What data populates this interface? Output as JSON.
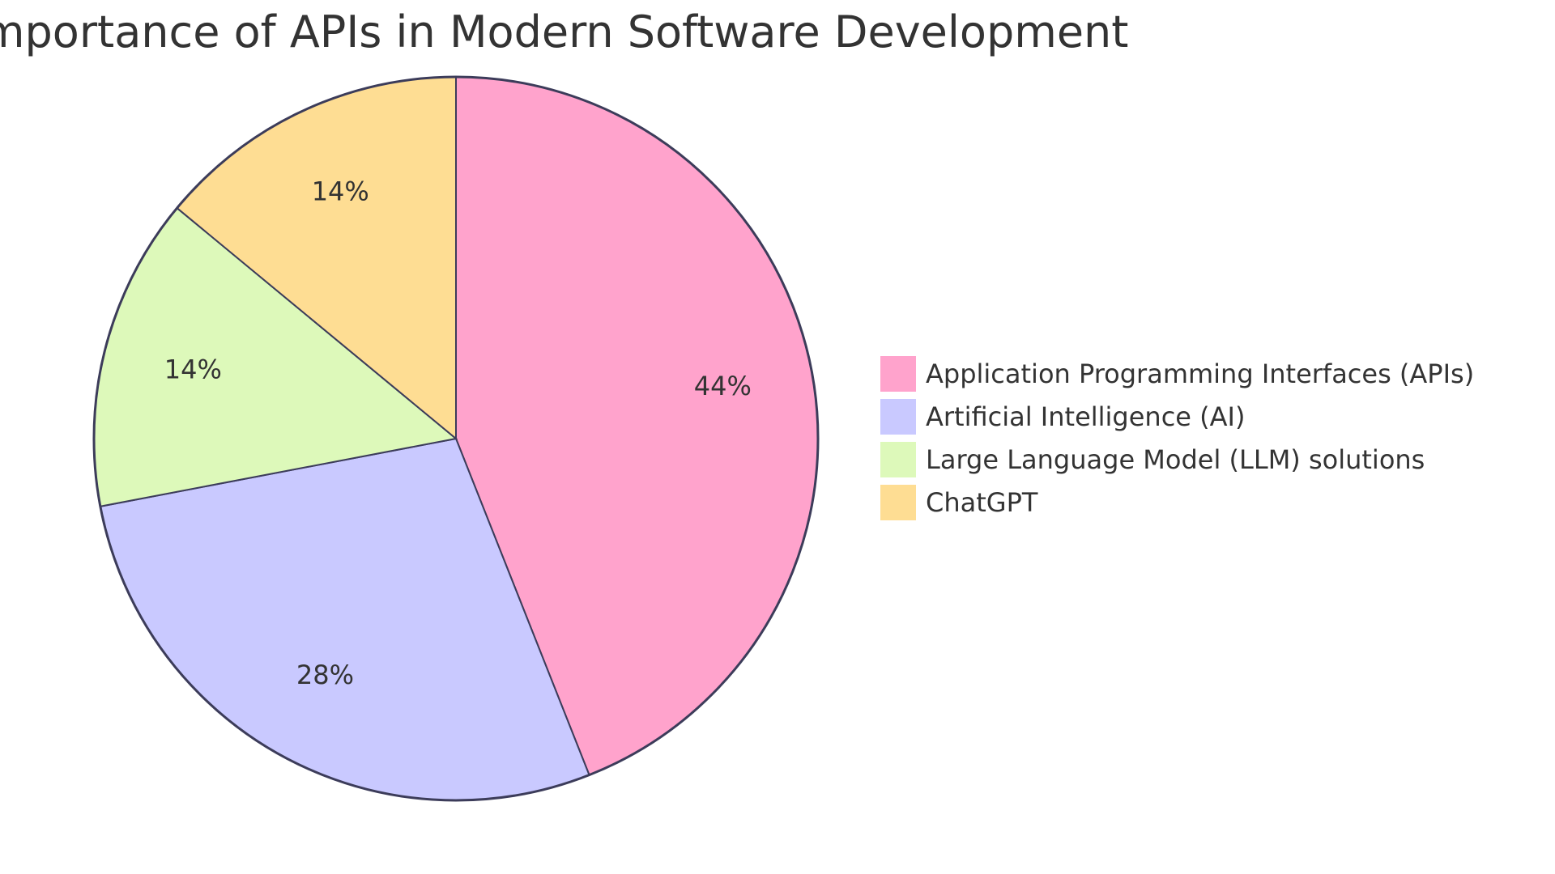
{
  "chart_data": {
    "type": "pie",
    "title": "Importance of APIs in Modern Software Development",
    "legend_position": "right",
    "slices": [
      {
        "label": "Application Programming Interfaces (APIs)",
        "value": 44,
        "display": "44%",
        "color": "#FFA3CC"
      },
      {
        "label": "Artificial Intelligence (AI)",
        "value": 28,
        "display": "28%",
        "color": "#C9C9FF"
      },
      {
        "label": "Large Language Model (LLM) solutions",
        "value": 14,
        "display": "14%",
        "color": "#DDF9BA"
      },
      {
        "label": "ChatGPT",
        "value": 14,
        "display": "14%",
        "color": "#FEDD93"
      }
    ],
    "border_color": "#3C3C5A"
  }
}
